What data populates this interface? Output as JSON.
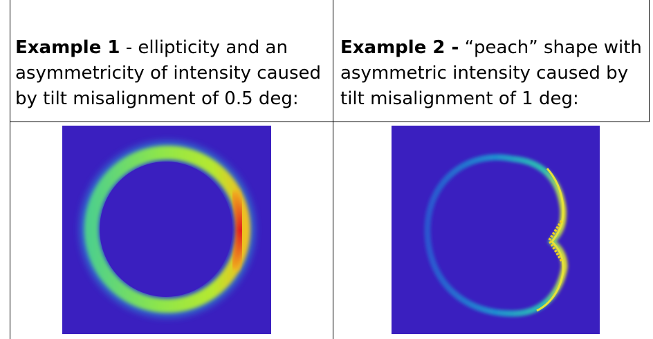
{
  "table": {
    "cells": [
      {
        "bold": "Example 1",
        "after_bold": " - ellipticity and an",
        "line2": "asymmetricity of intensity caused",
        "line3": "by tilt misalignment of 0.5 deg:",
        "figure_icon": "elliptical-ring-intensity-plot",
        "colors": {
          "background": "#3a1fbf",
          "ring_low": "#2fb0d6",
          "ring_mid": "#7de25a",
          "ring_high": "#e3261f"
        }
      },
      {
        "bold": "Example 2 -",
        "after_bold": " “peach” shape with",
        "line2": "asymmetric intensity caused by",
        "line3": "tilt misalignment of 1 deg:",
        "figure_icon": "peach-shaped-ring-intensity-plot",
        "colors": {
          "background": "#3a1fbf",
          "ring_low": "#2f6fd6",
          "ring_mid": "#18a8c8",
          "ring_high": "#e8e02a"
        }
      }
    ]
  }
}
